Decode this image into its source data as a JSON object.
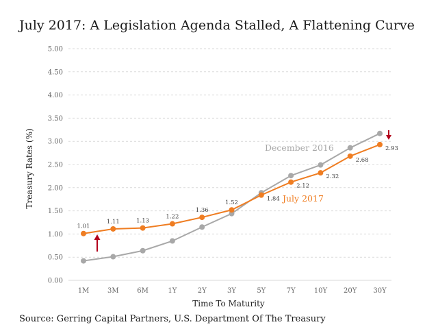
{
  "title": "July 2017: A Legislation Agenda Stalled, A Flattening Curve",
  "source": "Source: Gerring Capital Partners, U.S. Department Of The Treasury",
  "colors": {
    "july_2017": "#ef7d22",
    "december_2016": "#a8a8a8",
    "arrow": "#b3001b",
    "grid": "#d9d9d9"
  },
  "chart_data": {
    "type": "line",
    "title": "July 2017: A Legislation Agenda Stalled, A Flattening Curve",
    "xlabel": "Time To Maturity",
    "ylabel": "Treasury Rates (%)",
    "categories": [
      "1M",
      "3M",
      "6M",
      "1Y",
      "2Y",
      "3Y",
      "5Y",
      "7Y",
      "10Y",
      "20Y",
      "30Y"
    ],
    "y_ticks": [
      "0.00",
      "0.50",
      "1.00",
      "1.50",
      "2.00",
      "2.50",
      "3.00",
      "3.50",
      "4.00",
      "4.50",
      "5.00"
    ],
    "ylim": [
      0,
      5
    ],
    "grid": "horizontal dashed",
    "series": [
      {
        "name": "December 2016",
        "color": "#a8a8a8",
        "values": [
          0.42,
          0.51,
          0.64,
          0.85,
          1.15,
          1.44,
          1.89,
          2.26,
          2.49,
          2.86,
          3.17
        ]
      },
      {
        "name": "July 2017",
        "color": "#ef7d22",
        "values": [
          1.01,
          1.11,
          1.13,
          1.22,
          1.36,
          1.52,
          1.84,
          2.12,
          2.32,
          2.68,
          2.93
        ],
        "labels": [
          "1.01",
          "1.11",
          "1.13",
          "1.22",
          "1.36",
          "1.52",
          "1.84",
          "2.12",
          "2.32",
          "2.68",
          "2.93"
        ]
      }
    ],
    "annotations": [
      {
        "type": "arrow-up",
        "near": "1M",
        "meaning": "short-end rates rose"
      },
      {
        "type": "arrow-down",
        "near": "30Y",
        "meaning": "long-end rates fell"
      }
    ]
  }
}
